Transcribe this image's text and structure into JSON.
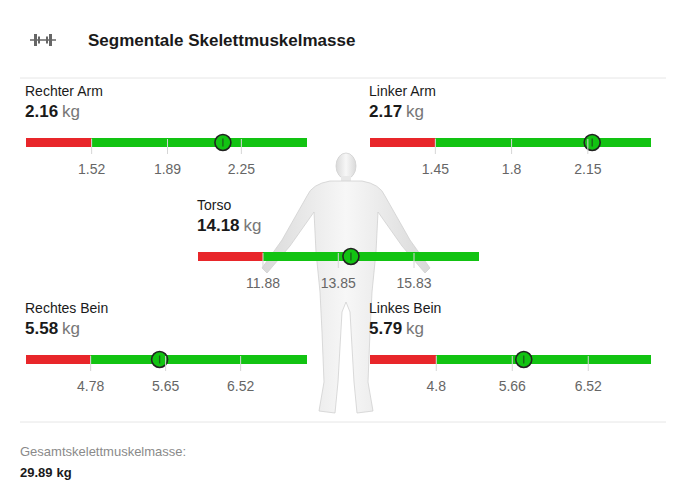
{
  "chart_data": {
    "type": "gauge",
    "title": "Segmentale Skelettmuskelmasse",
    "segments": [
      {
        "label": "Rechter Arm",
        "value": 2.16,
        "unit": "kg",
        "xlim": [
          1.2,
          2.57
        ],
        "xticks": [
          1.52,
          1.89,
          2.25
        ]
      },
      {
        "label": "Linker Arm",
        "value": 2.17,
        "unit": "kg",
        "xlim": [
          1.15,
          2.44
        ],
        "xticks": [
          1.45,
          1.8,
          2.15
        ]
      },
      {
        "label": "Torso",
        "value": 14.18,
        "unit": "kg",
        "xlim": [
          10.18,
          17.53
        ],
        "xticks": [
          11.88,
          13.85,
          15.83
        ]
      },
      {
        "label": "Rechtes Bein",
        "value": 5.58,
        "unit": "kg",
        "xlim": [
          4.03,
          7.29
        ],
        "xticks": [
          4.78,
          5.65,
          6.52
        ]
      },
      {
        "label": "Linkes Bein",
        "value": 5.79,
        "unit": "kg",
        "xlim": [
          4.05,
          7.23
        ],
        "xticks": [
          4.8,
          5.66,
          6.52
        ]
      }
    ],
    "total": {
      "label": "Gesamtskelettmuskelmasse:",
      "value": 29.89,
      "unit": "kg"
    }
  }
}
